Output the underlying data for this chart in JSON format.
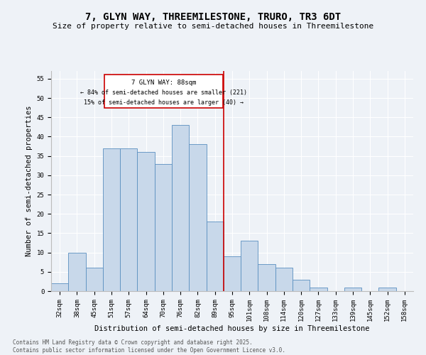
{
  "title": "7, GLYN WAY, THREEMILESTONE, TRURO, TR3 6DT",
  "subtitle": "Size of property relative to semi-detached houses in Threemilestone",
  "xlabel": "Distribution of semi-detached houses by size in Threemilestone",
  "ylabel": "Number of semi-detached properties",
  "bar_labels": [
    "32sqm",
    "38sqm",
    "45sqm",
    "51sqm",
    "57sqm",
    "64sqm",
    "70sqm",
    "76sqm",
    "82sqm",
    "89sqm",
    "95sqm",
    "101sqm",
    "108sqm",
    "114sqm",
    "120sqm",
    "127sqm",
    "133sqm",
    "139sqm",
    "145sqm",
    "152sqm",
    "158sqm"
  ],
  "bar_values": [
    2,
    10,
    6,
    37,
    37,
    36,
    33,
    43,
    38,
    18,
    9,
    13,
    7,
    6,
    3,
    1,
    0,
    1,
    0,
    1,
    0
  ],
  "bar_color": "#c8d8ea",
  "bar_edge_color": "#5a8fc0",
  "vline_color": "#cc0000",
  "annotation_title": "7 GLYN WAY: 88sqm",
  "annotation_line1": "← 84% of semi-detached houses are smaller (221)",
  "annotation_line2": "15% of semi-detached houses are larger (40) →",
  "annotation_box_color": "#ffffff",
  "annotation_box_edge": "#cc0000",
  "ylim": [
    0,
    57
  ],
  "yticks": [
    0,
    5,
    10,
    15,
    20,
    25,
    30,
    35,
    40,
    45,
    50,
    55
  ],
  "background_color": "#eef2f7",
  "footer_line1": "Contains HM Land Registry data © Crown copyright and database right 2025.",
  "footer_line2": "Contains public sector information licensed under the Open Government Licence v3.0.",
  "title_fontsize": 10,
  "subtitle_fontsize": 8,
  "xlabel_fontsize": 7.5,
  "ylabel_fontsize": 7.5,
  "tick_fontsize": 6.5,
  "footer_fontsize": 5.5
}
